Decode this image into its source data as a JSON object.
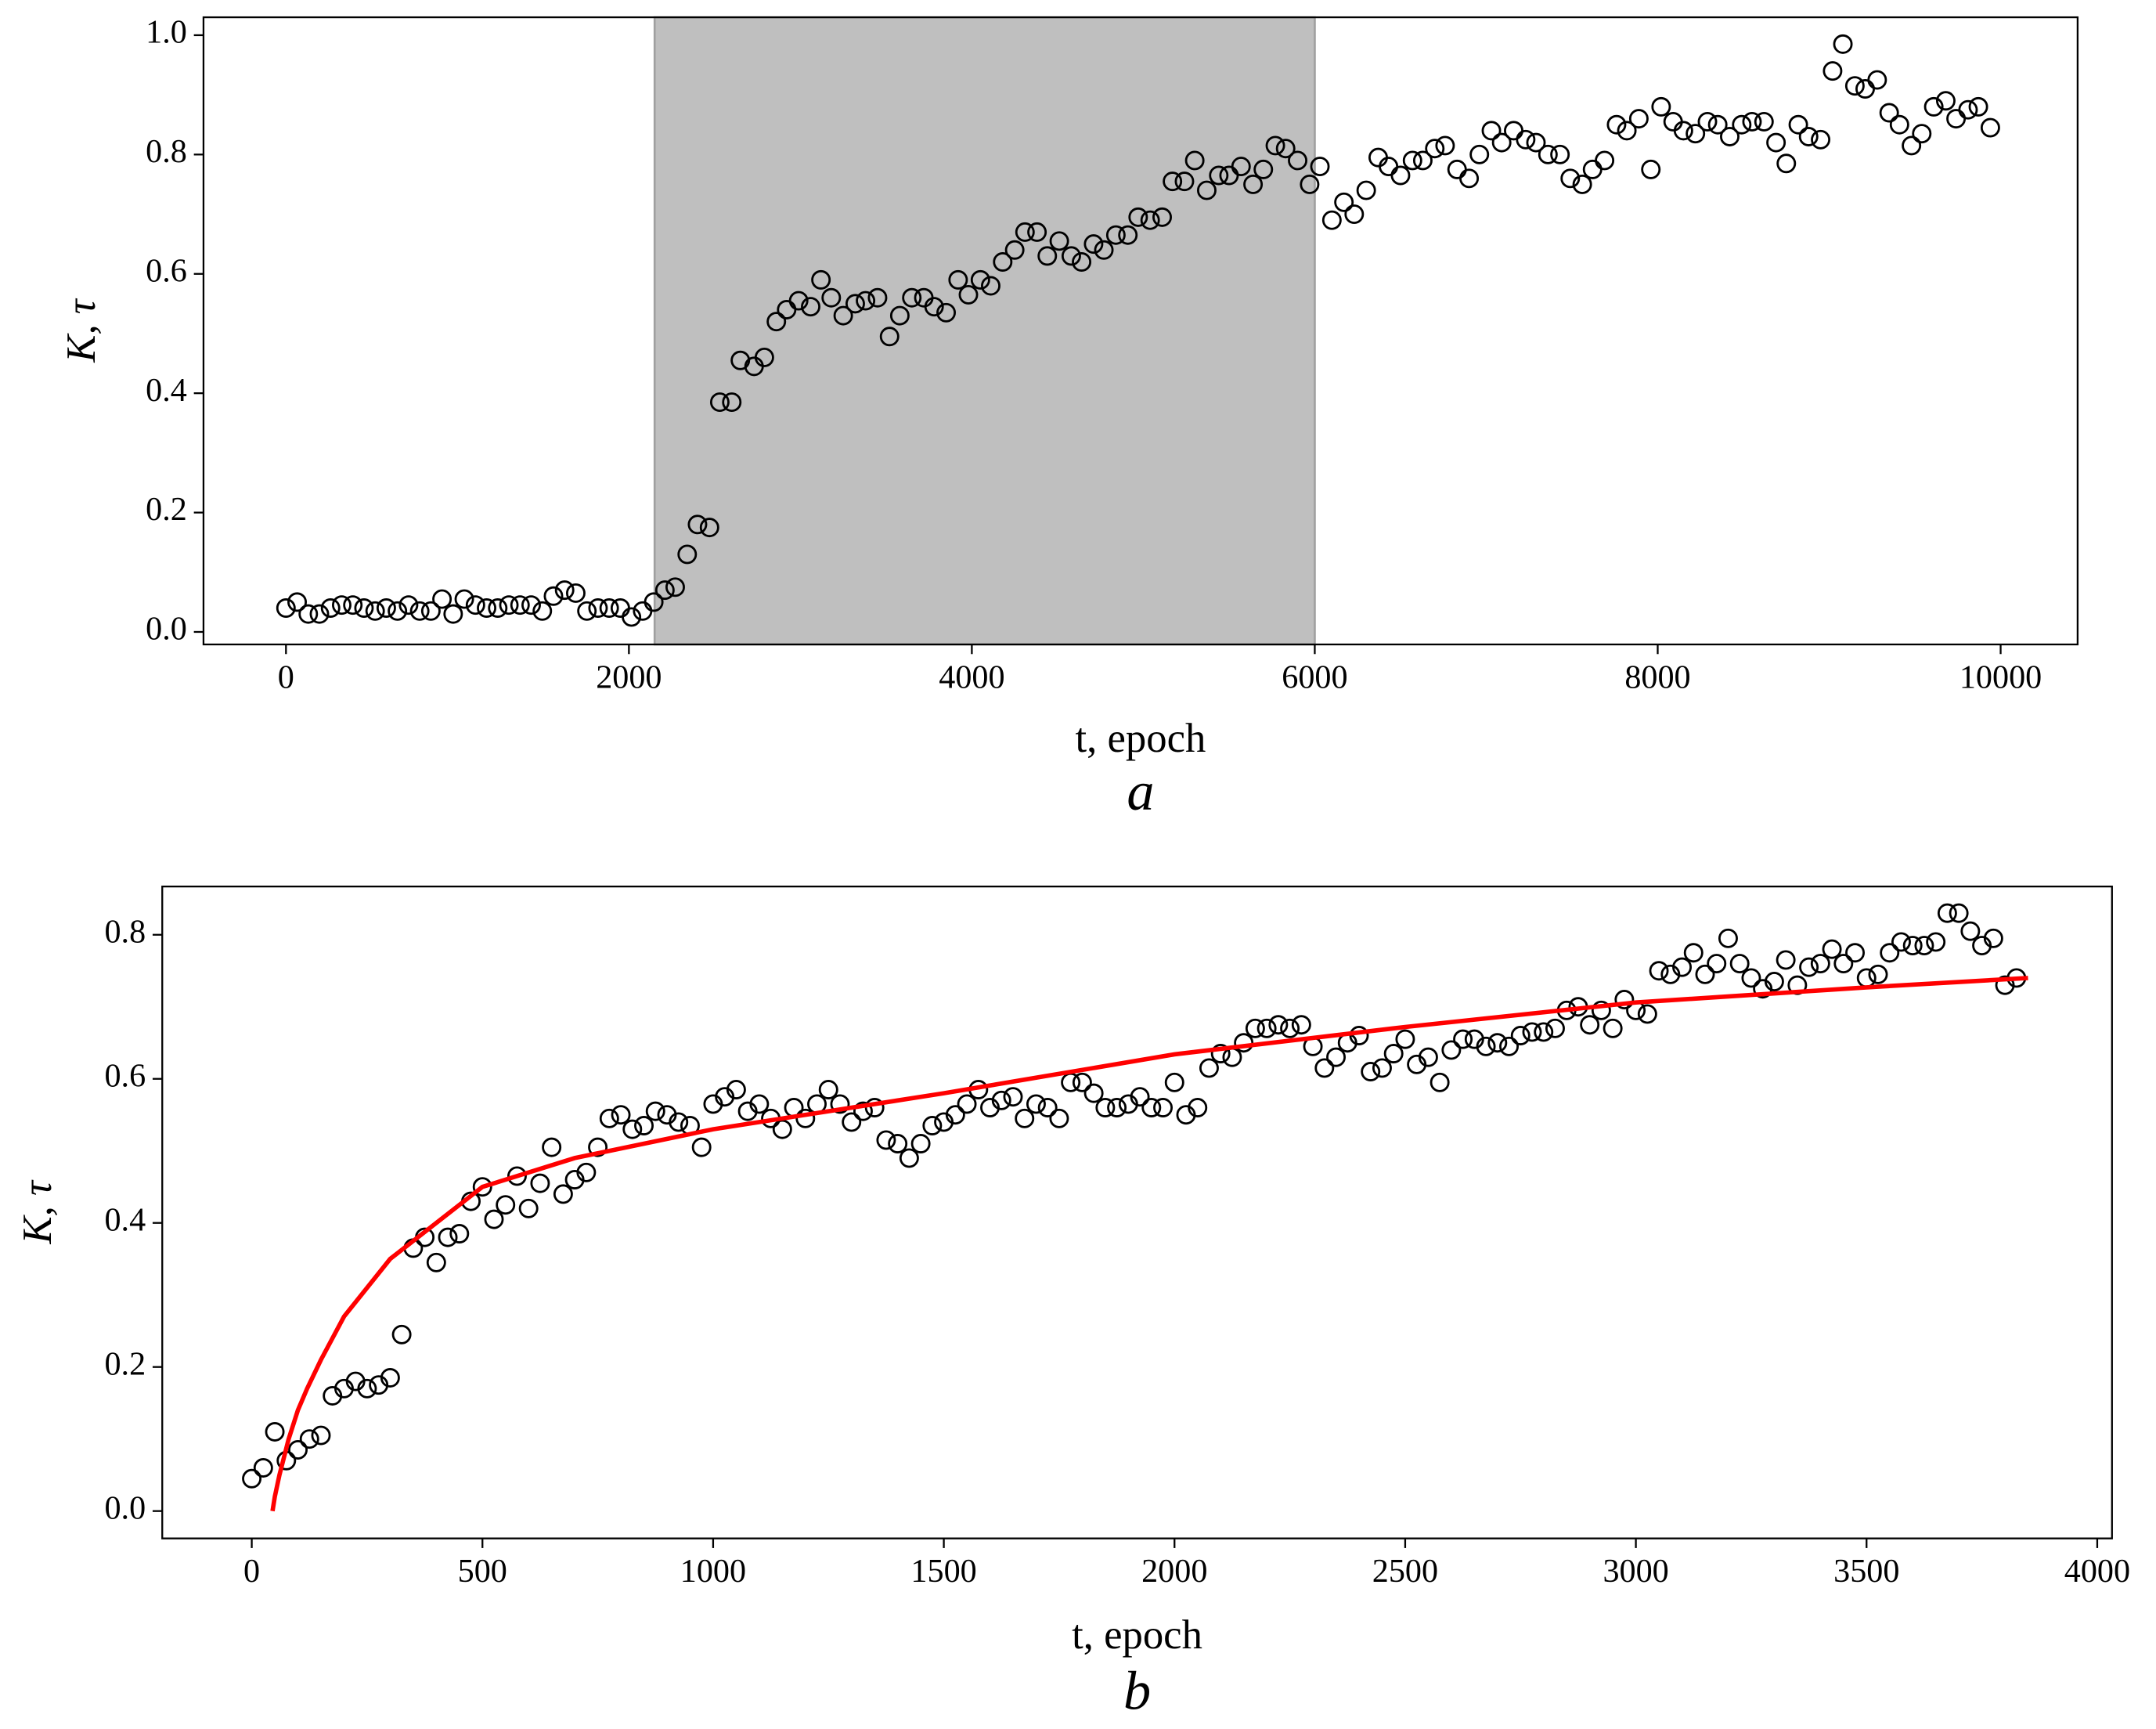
{
  "chart_data": [
    {
      "type": "scatter",
      "xlabel": "t, epoch",
      "ylabel": "K, τ",
      "panel_label": "a",
      "xlim": [
        -481,
        10449
      ],
      "ylim": [
        -0.021,
        1.03
      ],
      "xticks": [
        0,
        2000,
        4000,
        6000,
        8000,
        10000
      ],
      "yticks": [
        {
          "value": 0.0,
          "label": "0.0"
        },
        0.2,
        0.4,
        0.6,
        0.8,
        {
          "value": 1.0,
          "label": "1.0"
        }
      ],
      "shaded_span": [
        2150,
        6000
      ],
      "shade_color": "#bfbfbf",
      "color": "#000000",
      "x": [
        0,
        65,
        130,
        195,
        260,
        325,
        390,
        455,
        520,
        585,
        650,
        715,
        780,
        845,
        910,
        975,
        1040,
        1105,
        1170,
        1235,
        1300,
        1365,
        1430,
        1495,
        1560,
        1625,
        1690,
        1755,
        1820,
        1885,
        1950,
        2015,
        2080,
        2145,
        2210,
        2270,
        2340,
        2400,
        2470,
        2530,
        2600,
        2650,
        2730,
        2790,
        2860,
        2920,
        2990,
        3060,
        3120,
        3180,
        3250,
        3320,
        3380,
        3450,
        3520,
        3580,
        3650,
        3720,
        3780,
        3850,
        3920,
        3980,
        4050,
        4110,
        4180,
        4250,
        4310,
        4380,
        4440,
        4510,
        4580,
        4640,
        4710,
        4770,
        4840,
        4910,
        4970,
        5040,
        5110,
        5170,
        5240,
        5300,
        5370,
        5440,
        5500,
        5570,
        5640,
        5700,
        5770,
        5830,
        5900,
        5970,
        6030,
        6100,
        6170,
        6230,
        6300,
        6370,
        6430,
        6500,
        6570,
        6630,
        6700,
        6760,
        6830,
        6900,
        6960,
        7030,
        7090,
        7160,
        7230,
        7290,
        7360,
        7430,
        7490,
        7560,
        7620,
        7690,
        7760,
        7820,
        7890,
        7960,
        8020,
        8090,
        8150,
        8220,
        8290,
        8350,
        8420,
        8490,
        8550,
        8620,
        8690,
        8750,
        8820,
        8880,
        8950,
        9020,
        9080,
        9150,
        9210,
        9280,
        9350,
        9410,
        9480,
        9540,
        9610,
        9680,
        9740,
        9810,
        9870,
        9940
      ],
      "values": [
        0.04,
        0.05,
        0.03,
        0.03,
        0.04,
        0.045,
        0.045,
        0.04,
        0.035,
        0.04,
        0.035,
        0.045,
        0.035,
        0.035,
        0.055,
        0.03,
        0.055,
        0.045,
        0.04,
        0.04,
        0.045,
        0.045,
        0.045,
        0.035,
        0.06,
        0.07,
        0.065,
        0.035,
        0.04,
        0.04,
        0.04,
        0.025,
        0.035,
        0.05,
        0.07,
        0.075,
        0.13,
        0.18,
        0.175,
        0.385,
        0.385,
        0.455,
        0.445,
        0.46,
        0.52,
        0.54,
        0.555,
        0.545,
        0.59,
        0.56,
        0.53,
        0.55,
        0.555,
        0.56,
        0.495,
        0.53,
        0.56,
        0.56,
        0.545,
        0.535,
        0.59,
        0.565,
        0.59,
        0.58,
        0.62,
        0.64,
        0.67,
        0.67,
        0.63,
        0.655,
        0.63,
        0.62,
        0.65,
        0.64,
        0.665,
        0.665,
        0.695,
        0.69,
        0.695,
        0.755,
        0.755,
        0.79,
        0.74,
        0.765,
        0.765,
        0.78,
        0.75,
        0.775,
        0.815,
        0.81,
        0.79,
        0.75,
        0.78,
        0.69,
        0.72,
        0.7,
        0.74,
        0.795,
        0.78,
        0.765,
        0.79,
        0.79,
        0.81,
        0.815,
        0.775,
        0.76,
        0.8,
        0.84,
        0.82,
        0.84,
        0.825,
        0.82,
        0.8,
        0.8,
        0.76,
        0.75,
        0.775,
        0.79,
        0.85,
        0.84,
        0.86,
        0.775,
        0.88,
        0.855,
        0.84,
        0.835,
        0.855,
        0.85,
        0.83,
        0.85,
        0.855,
        0.855,
        0.82,
        0.785,
        0.85,
        0.83,
        0.825,
        0.94,
        0.985,
        0.915,
        0.91,
        0.925,
        0.87,
        0.85,
        0.815,
        0.835,
        0.88,
        0.89,
        0.86,
        0.875,
        0.88,
        0.845
      ]
    },
    {
      "type": "scatter",
      "xlabel": "t, epoch",
      "ylabel": "K, τ",
      "panel_label": "b",
      "xlim": [
        -194,
        4032
      ],
      "ylim": [
        -0.038,
        0.867
      ],
      "xticks": [
        0,
        500,
        1000,
        1500,
        2000,
        2500,
        3000,
        3500,
        4000
      ],
      "yticks": [
        {
          "value": 0.0,
          "label": "0.0"
        },
        0.2,
        0.4,
        0.6,
        0.8
      ],
      "color": "#000000",
      "x": [
        0,
        25,
        50,
        75,
        100,
        125,
        150,
        175,
        200,
        225,
        250,
        275,
        300,
        325,
        350,
        375,
        400,
        425,
        450,
        475,
        500,
        525,
        550,
        575,
        600,
        625,
        650,
        675,
        700,
        725,
        750,
        775,
        800,
        825,
        850,
        875,
        900,
        925,
        950,
        975,
        1000,
        1025,
        1050,
        1075,
        1100,
        1125,
        1150,
        1175,
        1200,
        1225,
        1250,
        1275,
        1300,
        1325,
        1350,
        1375,
        1400,
        1425,
        1450,
        1475,
        1500,
        1525,
        1550,
        1575,
        1600,
        1625,
        1650,
        1675,
        1700,
        1725,
        1750,
        1775,
        1800,
        1825,
        1850,
        1875,
        1900,
        1925,
        1950,
        1975,
        2000,
        2025,
        2050,
        2075,
        2100,
        2125,
        2150,
        2175,
        2200,
        2225,
        2250,
        2275,
        2300,
        2325,
        2350,
        2375,
        2400,
        2425,
        2450,
        2475,
        2500,
        2525,
        2550,
        2575,
        2600,
        2625,
        2650,
        2675,
        2700,
        2725,
        2750,
        2775,
        2800,
        2825,
        2850,
        2875,
        2900,
        2925,
        2950,
        2975,
        3000,
        3025,
        3050,
        3075,
        3100,
        3125,
        3150,
        3175,
        3200,
        3225,
        3250,
        3275,
        3300,
        3325,
        3350,
        3375,
        3400,
        3425,
        3450,
        3475,
        3500,
        3525,
        3550,
        3575,
        3600,
        3625,
        3650,
        3675,
        3700,
        3725,
        3750,
        3775,
        3800,
        3825
      ],
      "values": [
        0.045,
        0.06,
        0.11,
        0.07,
        0.085,
        0.1,
        0.105,
        0.16,
        0.17,
        0.18,
        0.17,
        0.175,
        0.185,
        0.245,
        0.365,
        0.38,
        0.345,
        0.38,
        0.385,
        0.43,
        0.45,
        0.405,
        0.425,
        0.465,
        0.42,
        0.455,
        0.505,
        0.44,
        0.46,
        0.47,
        0.505,
        0.545,
        0.55,
        0.53,
        0.535,
        0.555,
        0.55,
        0.54,
        0.535,
        0.505,
        0.565,
        0.575,
        0.585,
        0.555,
        0.565,
        0.545,
        0.53,
        0.56,
        0.545,
        0.565,
        0.585,
        0.565,
        0.54,
        0.555,
        0.56,
        0.515,
        0.51,
        0.49,
        0.51,
        0.535,
        0.54,
        0.55,
        0.565,
        0.585,
        0.56,
        0.57,
        0.575,
        0.545,
        0.565,
        0.56,
        0.545,
        0.595,
        0.595,
        0.58,
        0.56,
        0.56,
        0.565,
        0.575,
        0.56,
        0.56,
        0.595,
        0.55,
        0.56,
        0.615,
        0.635,
        0.63,
        0.65,
        0.67,
        0.67,
        0.675,
        0.67,
        0.675,
        0.645,
        0.615,
        0.63,
        0.65,
        0.66,
        0.61,
        0.615,
        0.635,
        0.655,
        0.62,
        0.63,
        0.595,
        0.64,
        0.655,
        0.655,
        0.645,
        0.65,
        0.645,
        0.66,
        0.665,
        0.665,
        0.67,
        0.695,
        0.7,
        0.675,
        0.695,
        0.67,
        0.71,
        0.695,
        0.69,
        0.75,
        0.745,
        0.755,
        0.775,
        0.745,
        0.76,
        0.795,
        0.76,
        0.74,
        0.725,
        0.735,
        0.765,
        0.73,
        0.755,
        0.76,
        0.78,
        0.76,
        0.775,
        0.74,
        0.745,
        0.775,
        0.79,
        0.785,
        0.785,
        0.79,
        0.83,
        0.83,
        0.805,
        0.785,
        0.795,
        0.73,
        0.74
      ],
      "fit": {
        "type": "line",
        "color": "#ff0000",
        "x": [
          45,
          50,
          60,
          70,
          80,
          100,
          120,
          150,
          200,
          300,
          500,
          700,
          1000,
          1500,
          2000,
          2500,
          3000,
          3500,
          3850
        ],
        "values": [
          0.0,
          0.02,
          0.05,
          0.075,
          0.1,
          0.14,
          0.17,
          0.21,
          0.27,
          0.35,
          0.45,
          0.49,
          0.53,
          0.58,
          0.634,
          0.672,
          0.706,
          0.727,
          0.74
        ]
      }
    }
  ]
}
